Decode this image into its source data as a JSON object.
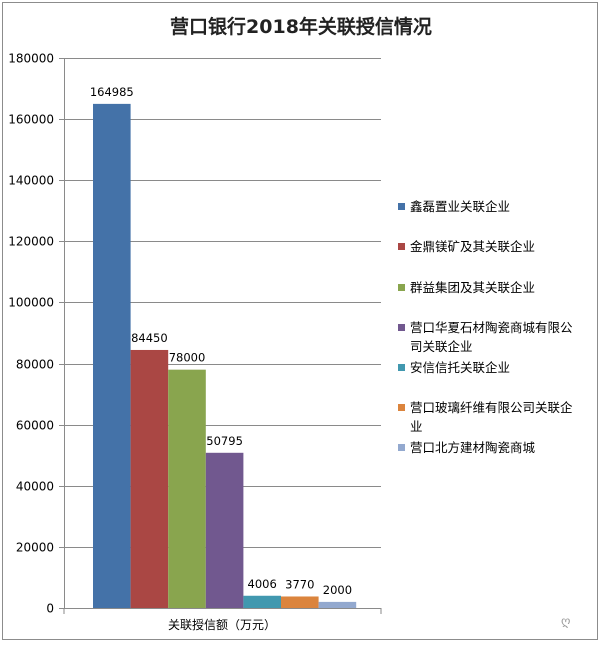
{
  "chart_data": {
    "type": "bar",
    "title": "营口银行2018年关联授信情况",
    "xlabel": "关联授信额（万元）",
    "ylabel": "",
    "ylim": [
      0,
      180000
    ],
    "yticks": [
      0,
      20000,
      40000,
      60000,
      80000,
      100000,
      120000,
      140000,
      160000,
      180000
    ],
    "grid": true,
    "legend_position": "right",
    "series": [
      {
        "name": "鑫磊置业关联企业",
        "value": 164985,
        "color": "#4472a8"
      },
      {
        "name": "金鼎镁矿及其关联企业",
        "value": 84450,
        "color": "#aa4744"
      },
      {
        "name": "群益集团及其关联企业",
        "value": 78000,
        "color": "#89a54e"
      },
      {
        "name": "营口华夏石材陶瓷商城有限公司关联企业",
        "value": 50795,
        "color": "#71588f",
        "legend_lines": [
          "营口华夏石材陶瓷商城有限公",
          "司关联企业"
        ]
      },
      {
        "name": "安信信托关联企业",
        "value": 4006,
        "color": "#4198af"
      },
      {
        "name": "营口玻璃纤维有限公司关联企业",
        "value": 3770,
        "color": "#db843d",
        "legend_lines": [
          "营口玻璃纤维有限公司关联企",
          "业"
        ]
      },
      {
        "name": "营口北方建材陶瓷商城",
        "value": 2000,
        "color": "#93a9cf"
      }
    ]
  },
  "watermark": "ღ"
}
